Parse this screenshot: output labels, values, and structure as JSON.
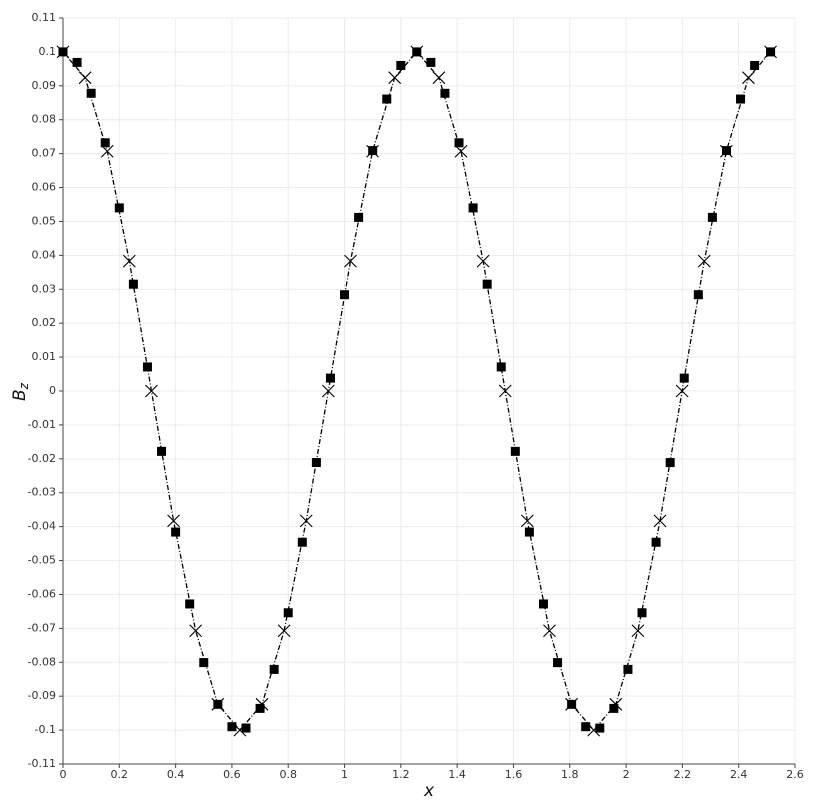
{
  "chart_data": {
    "type": "scatter",
    "xlabel": "x",
    "ylabel": {
      "text": "B",
      "subscript": "z"
    },
    "xlim": [
      0,
      2.6
    ],
    "ylim": [
      -0.11,
      0.11
    ],
    "xticks": [
      0,
      0.2,
      0.4,
      0.6,
      0.8,
      1,
      1.2,
      1.4,
      1.6,
      1.8,
      2,
      2.2,
      2.4,
      2.6
    ],
    "yticks": [
      -0.11,
      -0.1,
      -0.09,
      -0.08,
      -0.07,
      -0.06,
      -0.05,
      -0.04,
      -0.03,
      -0.02,
      -0.01,
      0,
      0.01,
      0.02,
      0.03,
      0.04,
      0.05,
      0.06,
      0.07,
      0.08,
      0.09,
      0.1,
      0.11
    ],
    "grid": true,
    "series": [
      {
        "color": "#000000",
        "marker": "square",
        "linestyle": "none",
        "x": [
          0,
          0.05,
          0.1,
          0.15,
          0.2,
          0.25,
          0.3,
          0.35,
          0.4,
          0.45,
          0.5,
          0.55,
          0.6,
          0.65,
          0.7,
          0.75,
          0.8,
          0.85,
          0.9,
          0.95,
          1,
          1.05,
          1.1,
          1.15,
          1.2,
          1.2566,
          1.3066,
          1.3566,
          1.4066,
          1.4566,
          1.5066,
          1.5566,
          1.6066,
          1.6566,
          1.7066,
          1.7566,
          1.8066,
          1.8566,
          1.9066,
          1.9566,
          2.0066,
          2.0566,
          2.1066,
          2.1566,
          2.2066,
          2.2566,
          2.3066,
          2.3566,
          2.4066,
          2.4566,
          2.5133
        ],
        "values": [
          0.1,
          0.0969,
          0.0878,
          0.0732,
          0.054,
          0.0315,
          0.0071,
          -0.0178,
          -0.0416,
          -0.0628,
          -0.0801,
          -0.0924,
          -0.099,
          -0.0994,
          -0.0936,
          -0.0821,
          -0.0654,
          -0.0446,
          -0.0211,
          0.0038,
          0.0284,
          0.0512,
          0.0709,
          0.0861,
          0.096,
          0.1,
          0.0969,
          0.0878,
          0.0732,
          0.054,
          0.0315,
          0.0071,
          -0.0178,
          -0.0416,
          -0.0628,
          -0.0801,
          -0.0924,
          -0.099,
          -0.0994,
          -0.0936,
          -0.0821,
          -0.0654,
          -0.0446,
          -0.0211,
          0.0038,
          0.0284,
          0.0512,
          0.0709,
          0.0861,
          0.096,
          0.1
        ]
      },
      {
        "color": "#000000",
        "marker": "cross",
        "linestyle": "dashdot",
        "x": [
          0,
          0.0785,
          0.1571,
          0.2356,
          0.3142,
          0.3927,
          0.4712,
          0.5498,
          0.6283,
          0.7069,
          0.7854,
          0.8639,
          0.9425,
          1.021,
          1.0996,
          1.1781,
          1.2566,
          1.3352,
          1.4137,
          1.4923,
          1.5708,
          1.6493,
          1.7279,
          1.8064,
          1.885,
          1.9635,
          2.042,
          2.1206,
          2.1991,
          2.2777,
          2.3562,
          2.4347,
          2.5133
        ],
        "values": [
          0.1,
          0.0924,
          0.0707,
          0.0383,
          0,
          -0.0383,
          -0.0707,
          -0.0924,
          -0.1,
          -0.0924,
          -0.0707,
          -0.0383,
          0,
          0.0383,
          0.0707,
          0.0924,
          0.1,
          0.0924,
          0.0707,
          0.0383,
          0,
          -0.0383,
          -0.0707,
          -0.0924,
          -0.1,
          -0.0924,
          -0.0707,
          -0.0383,
          0,
          0.0383,
          0.0707,
          0.0924,
          0.1
        ]
      }
    ]
  }
}
